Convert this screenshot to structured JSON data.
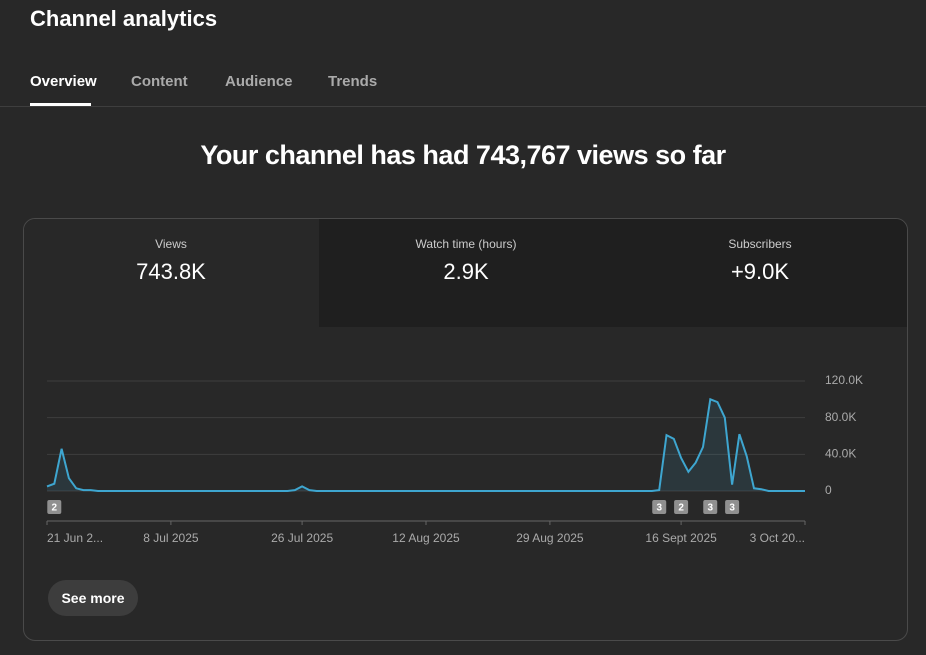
{
  "header": {
    "title": "Channel analytics",
    "tabs": [
      "Overview",
      "Content",
      "Audience",
      "Trends"
    ]
  },
  "headline": "Your channel has had 743,767 views so far",
  "metrics": [
    {
      "label": "Views",
      "value": "743.8K"
    },
    {
      "label": "Watch time (hours)",
      "value": "2.9K"
    },
    {
      "label": "Subscribers",
      "value": "+9.0K"
    }
  ],
  "button": "See more",
  "chart_data": {
    "type": "line",
    "color": "#3ea6d0",
    "values": [
      5000,
      8000,
      46000,
      14000,
      3000,
      1000,
      1000,
      0,
      0,
      0,
      0,
      0,
      0,
      0,
      0,
      0,
      0,
      0,
      0,
      0,
      0,
      0,
      0,
      0,
      0,
      0,
      0,
      0,
      0,
      0,
      0,
      0,
      0,
      0,
      1000,
      5000,
      1000,
      0,
      0,
      0,
      0,
      0,
      0,
      0,
      0,
      0,
      0,
      0,
      0,
      0,
      0,
      0,
      0,
      0,
      0,
      0,
      0,
      0,
      0,
      0,
      0,
      0,
      0,
      0,
      0,
      0,
      0,
      0,
      0,
      0,
      0,
      0,
      0,
      0,
      0,
      0,
      0,
      0,
      0,
      0,
      0,
      0,
      0,
      0,
      1000,
      61000,
      57000,
      36000,
      21000,
      31000,
      48000,
      100000,
      97000,
      80000,
      7000,
      62000,
      38000,
      3000,
      2000,
      0,
      0,
      0,
      0,
      0,
      0
    ],
    "xlim": [
      0,
      104
    ],
    "xticks": [
      {
        "value": 0,
        "label": "21 Jun 2..."
      },
      {
        "value": 17,
        "label": "8 Jul 2025"
      },
      {
        "value": 35,
        "label": "26 Jul 2025"
      },
      {
        "value": 52,
        "label": "12 Aug 2025"
      },
      {
        "value": 69,
        "label": "29 Aug 2025"
      },
      {
        "value": 87,
        "label": "16 Sept 2025"
      },
      {
        "value": 104,
        "label": "3 Oct 20..."
      }
    ],
    "ylim": [
      0,
      120000
    ],
    "yticks": [
      0,
      {
        "value": 40000,
        "label": "40.0K"
      },
      {
        "value": 80000,
        "label": "80.0K"
      },
      {
        "value": 120000,
        "label": "120.0K"
      }
    ],
    "grid": true,
    "annotations": [
      {
        "x": 1,
        "count": 2
      },
      {
        "x": 84,
        "count": 3
      },
      {
        "x": 87,
        "count": 2
      },
      {
        "x": 91,
        "count": 3
      },
      {
        "x": 94,
        "count": 3
      }
    ]
  }
}
